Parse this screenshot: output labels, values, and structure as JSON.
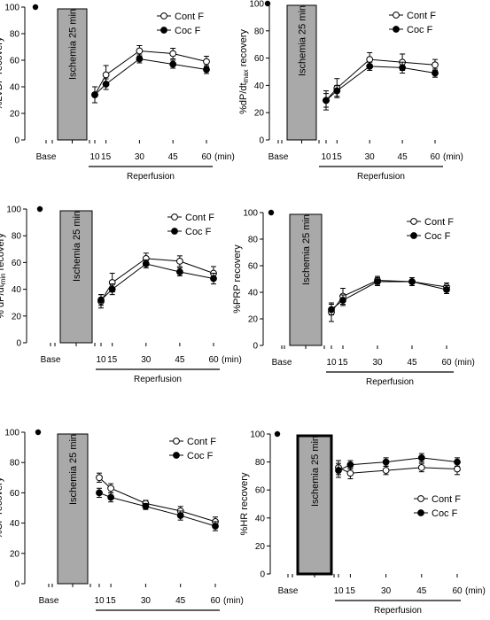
{
  "chart_data": [
    {
      "type": "line",
      "ylabel": "%LVDP recovery",
      "ylim": [
        0,
        100
      ],
      "yticks": [
        0,
        20,
        40,
        60,
        80,
        100
      ],
      "base_label": "Base",
      "x_ticks": [
        "10",
        "15",
        "30",
        "45",
        "60"
      ],
      "x_unit": "(min)",
      "xlabel": "Reperfusion",
      "ischemia_label": "Ischemia 25 min",
      "base_value": 100,
      "x": [
        10,
        15,
        30,
        45,
        60
      ],
      "series": [
        {
          "name": "Cont F",
          "marker": "open-circle",
          "values": [
            34,
            49,
            67,
            65,
            59
          ],
          "err": [
            6,
            7,
            4,
            4,
            4
          ]
        },
        {
          "name": "Coc F",
          "marker": "filled-circle",
          "values": [
            34,
            42,
            61,
            57,
            53
          ],
          "err": [
            6,
            4,
            3,
            3,
            3
          ]
        }
      ],
      "legend_position": "top-right"
    },
    {
      "type": "line",
      "ylabel": "%dP/dt_max recovery",
      "ylabel_main": "%dP/dt",
      "ylabel_sub": "max",
      "ylabel_rest": " recovery",
      "ylim": [
        0,
        100
      ],
      "yticks": [
        0,
        20,
        40,
        60,
        80,
        100
      ],
      "base_label": "Base",
      "x_ticks": [
        "10",
        "15",
        "30",
        "45",
        "60"
      ],
      "x_unit": "(min)",
      "xlabel": "Reperfusion",
      "ischemia_label": "Ischemia 25 min",
      "base_value": 100,
      "x": [
        10,
        15,
        30,
        45,
        60
      ],
      "series": [
        {
          "name": "Cont F",
          "marker": "open-circle",
          "values": [
            29,
            38,
            59,
            57,
            55
          ],
          "err": [
            7,
            7,
            5,
            6,
            4
          ]
        },
        {
          "name": "Coc F",
          "marker": "filled-circle",
          "values": [
            29,
            36,
            54,
            53,
            49
          ],
          "err": [
            5,
            4,
            3,
            4,
            3
          ]
        }
      ],
      "legend_position": "top-right"
    },
    {
      "type": "line",
      "ylabel": "% dP/dt_min recovery",
      "ylabel_main": "% dP/dt",
      "ylabel_sub": "min",
      "ylabel_rest": " recovery",
      "ylim": [
        0,
        100
      ],
      "yticks": [
        0,
        20,
        40,
        60,
        80,
        100
      ],
      "base_label": "Base",
      "x_ticks": [
        "10",
        "15",
        "30",
        "45",
        "60"
      ],
      "x_unit": "(min)",
      "xlabel": "Reperfusion",
      "ischemia_label": "Ischemia 25 min",
      "base_value": 100,
      "x": [
        10,
        15,
        30,
        45,
        60
      ],
      "series": [
        {
          "name": "Cont F",
          "marker": "open-circle",
          "values": [
            31,
            45,
            63,
            61,
            52
          ],
          "err": [
            5,
            7,
            4,
            4,
            5
          ]
        },
        {
          "name": "Coc F",
          "marker": "filled-circle",
          "values": [
            32,
            40,
            59,
            53,
            48
          ],
          "err": [
            4,
            4,
            3,
            3,
            4
          ]
        }
      ],
      "legend_position": "top-right"
    },
    {
      "type": "line",
      "ylabel": "%PRP recovery",
      "ylim": [
        0,
        100
      ],
      "yticks": [
        0,
        20,
        40,
        60,
        80,
        100
      ],
      "base_label": "Base",
      "x_ticks": [
        "10",
        "15",
        "30",
        "45",
        "60"
      ],
      "x_unit": "(min)",
      "xlabel": "Reperfusion",
      "ischemia_label": "Ischemia 25 min",
      "base_value": 100,
      "x": [
        10,
        15,
        30,
        45,
        60
      ],
      "series": [
        {
          "name": "Cont F",
          "marker": "open-circle",
          "values": [
            25,
            37,
            49,
            48,
            44
          ],
          "err": [
            7,
            6,
            3,
            3,
            3
          ]
        },
        {
          "name": "Coc F",
          "marker": "filled-circle",
          "values": [
            27,
            34,
            48,
            48,
            42
          ],
          "err": [
            4,
            4,
            3,
            3,
            3
          ]
        }
      ],
      "legend_position": "top-right"
    },
    {
      "type": "line",
      "ylabel": "%CF recovery",
      "ylim": [
        0,
        100
      ],
      "yticks": [
        0,
        20,
        40,
        60,
        80,
        100
      ],
      "base_label": "Base",
      "x_ticks": [
        "10",
        "15",
        "30",
        "45",
        "60"
      ],
      "x_unit": "(min)",
      "xlabel": "Reperfusion",
      "ischemia_label": "Ischemia 25 min",
      "base_value": 100,
      "x": [
        10,
        15,
        30,
        45,
        60
      ],
      "series": [
        {
          "name": "Cont F",
          "marker": "open-circle",
          "values": [
            70,
            63,
            53,
            48,
            41
          ],
          "err": [
            3,
            3,
            2,
            3,
            3
          ]
        },
        {
          "name": "Coc F",
          "marker": "filled-circle",
          "values": [
            60,
            57,
            51,
            45,
            38
          ],
          "err": [
            3,
            3,
            2,
            3,
            3
          ]
        }
      ],
      "legend_position": "top-right"
    },
    {
      "type": "line",
      "ylabel": "%HR recovery",
      "ylim": [
        0,
        100
      ],
      "yticks": [
        0,
        20,
        40,
        60,
        80,
        100
      ],
      "base_label": "Base",
      "x_ticks": [
        "10",
        "15",
        "30",
        "45",
        "60"
      ],
      "x_unit": "(min)",
      "xlabel": "Reperfusion",
      "ischemia_label": "Ischemia 25 min",
      "base_value": 100,
      "x": [
        10,
        15,
        30,
        45,
        60
      ],
      "series": [
        {
          "name": "Cont F",
          "marker": "open-circle",
          "values": [
            76,
            72,
            74,
            76,
            75
          ],
          "err": [
            5,
            4,
            3,
            3,
            4
          ]
        },
        {
          "name": "Coc F",
          "marker": "filled-circle",
          "values": [
            74,
            78,
            80,
            83,
            80
          ],
          "err": [
            5,
            3,
            3,
            3,
            3
          ]
        }
      ],
      "legend_position": "middle-right"
    }
  ]
}
